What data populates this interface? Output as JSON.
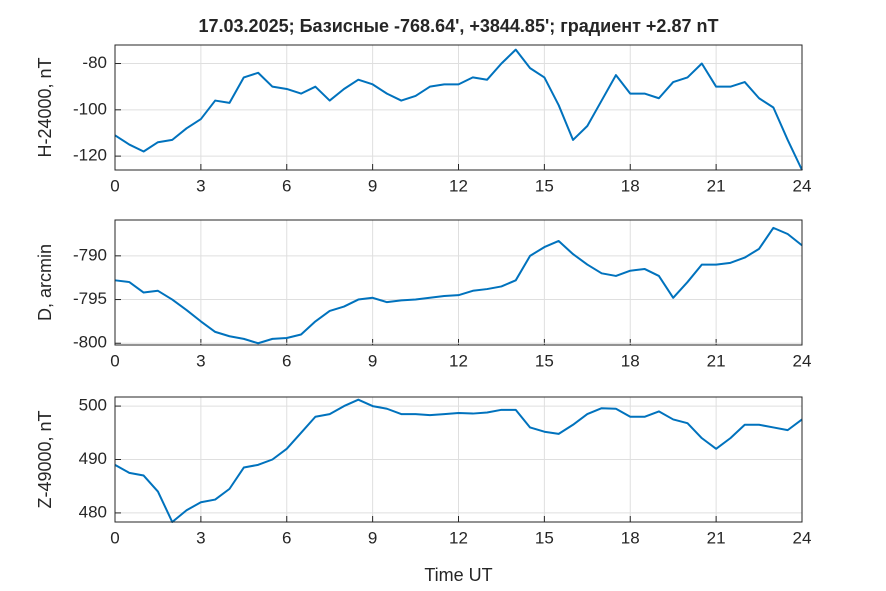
{
  "chart_data": [
    {
      "type": "line",
      "title": "17.03.2025;  Базисные  -768.64', +3844.85'; градиент +2.87 nT",
      "y_label": "H-24000, nT",
      "x": [
        0,
        0.5,
        1,
        1.5,
        2,
        2.5,
        3,
        3.5,
        4,
        4.5,
        5,
        5.5,
        6,
        6.5,
        7,
        7.5,
        8,
        8.5,
        9,
        9.5,
        10,
        10.5,
        11,
        11.5,
        12,
        12.5,
        13,
        13.5,
        14,
        14.5,
        15,
        15.5,
        16,
        16.5,
        17,
        17.5,
        18,
        18.5,
        19,
        19.5,
        20,
        20.5,
        21,
        21.5,
        22,
        22.5,
        23,
        23.5,
        24
      ],
      "series": [
        {
          "color": "#0072bd",
          "values": [
            -111,
            -115,
            -118,
            -114,
            -113,
            -108,
            -104,
            -96,
            -97,
            -86,
            -84,
            -90,
            -91,
            -93,
            -90,
            -96,
            -91,
            -87,
            -89,
            -93,
            -96,
            -94,
            -90,
            -89,
            -89,
            -86,
            -87,
            -80,
            -74,
            -82,
            -86,
            -98,
            -113,
            -107,
            -96,
            -85,
            -93,
            -93,
            -95,
            -88,
            -86,
            -80,
            -90,
            -90,
            -88,
            -95,
            -99,
            -113,
            -126
          ]
        }
      ],
      "xlim": [
        0,
        24
      ],
      "xticks": [
        0,
        3,
        6,
        9,
        12,
        15,
        18,
        21,
        24
      ],
      "ylim": [
        -126,
        -72
      ],
      "yticks": [
        -120,
        -100,
        -80
      ],
      "grid": true
    },
    {
      "type": "line",
      "y_label": "D, arcmin",
      "x": [
        0,
        0.5,
        1,
        1.5,
        2,
        2.5,
        3,
        3.5,
        4,
        4.5,
        5,
        5.5,
        6,
        6.5,
        7,
        7.5,
        8,
        8.5,
        9,
        9.5,
        10,
        10.5,
        11,
        11.5,
        12,
        12.5,
        13,
        13.5,
        14,
        14.5,
        15,
        15.5,
        16,
        16.5,
        17,
        17.5,
        18,
        18.5,
        19,
        19.5,
        20,
        20.5,
        21,
        21.5,
        22,
        22.5,
        23,
        23.5,
        24
      ],
      "series": [
        {
          "color": "#0072bd",
          "values": [
            -792.8,
            -793,
            -794.2,
            -794,
            -795,
            -796.2,
            -797.5,
            -798.7,
            -799.2,
            -799.5,
            -800,
            -799.5,
            -799.4,
            -799,
            -797.5,
            -796.3,
            -795.8,
            -795,
            -794.8,
            -795.3,
            -795.1,
            -795,
            -794.8,
            -794.6,
            -794.5,
            -794,
            -793.8,
            -793.5,
            -792.8,
            -790,
            -789,
            -788.3,
            -789.8,
            -791,
            -792,
            -792.3,
            -791.7,
            -791.5,
            -792.3,
            -794.8,
            -793,
            -791,
            -791,
            -790.8,
            -790.2,
            -789.2,
            -786.8,
            -787.5,
            -788.8
          ]
        }
      ],
      "xlim": [
        0,
        24
      ],
      "xticks": [
        0,
        3,
        6,
        9,
        12,
        15,
        18,
        21,
        24
      ],
      "ylim": [
        -800.2,
        -785.9
      ],
      "yticks": [
        -800,
        -795,
        -790
      ],
      "grid": true
    },
    {
      "type": "line",
      "y_label": "Z-49000, nT",
      "x_label": "Time UT",
      "x": [
        0,
        0.5,
        1,
        1.5,
        2,
        2.5,
        3,
        3.5,
        4,
        4.5,
        5,
        5.5,
        6,
        6.5,
        7,
        7.5,
        8,
        8.5,
        9,
        9.5,
        10,
        10.5,
        11,
        11.5,
        12,
        12.5,
        13,
        13.5,
        14,
        14.5,
        15,
        15.5,
        16,
        16.5,
        17,
        17.5,
        18,
        18.5,
        19,
        19.5,
        20,
        20.5,
        21,
        21.5,
        22,
        22.5,
        23,
        23.5,
        24
      ],
      "series": [
        {
          "color": "#0072bd",
          "values": [
            489,
            487.5,
            487,
            484,
            478.3,
            480.5,
            482,
            482.5,
            484.5,
            488.5,
            489,
            490,
            492,
            495,
            498,
            498.5,
            500,
            501.2,
            500,
            499.5,
            498.5,
            498.5,
            498.3,
            498.5,
            498.7,
            498.6,
            498.8,
            499.3,
            499.3,
            496,
            495.2,
            494.8,
            496.5,
            498.5,
            499.6,
            499.5,
            498,
            498,
            499,
            497.5,
            496.8,
            494,
            492,
            494,
            496.5,
            496.5,
            496,
            495.5,
            497.5
          ]
        }
      ],
      "xlim": [
        0,
        24
      ],
      "xticks": [
        0,
        3,
        6,
        9,
        12,
        15,
        18,
        21,
        24
      ],
      "ylim": [
        478.3,
        501.7
      ],
      "yticks": [
        480,
        490,
        500
      ],
      "grid": true
    }
  ]
}
